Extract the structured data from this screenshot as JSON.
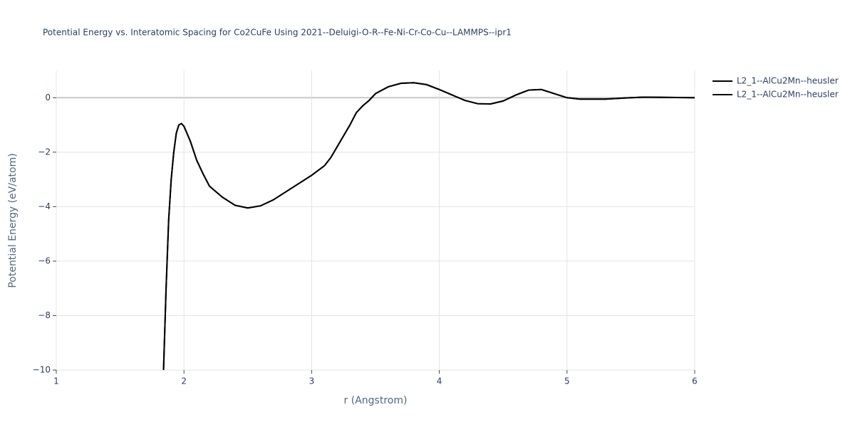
{
  "chart_data": {
    "type": "line",
    "title": "Potential Energy vs. Interatomic Spacing for Co2CuFe Using 2021--Deluigi-O-R--Fe-Ni-Cr-Co-Cu--LAMMPS--ipr1",
    "xlabel": "r (Angstrom)",
    "ylabel": "Potential Energy (eV/atom)",
    "x": [
      1.84,
      1.86,
      1.88,
      1.9,
      1.92,
      1.94,
      1.96,
      1.98,
      2.0,
      2.05,
      2.1,
      2.15,
      2.2,
      2.3,
      2.4,
      2.5,
      2.6,
      2.7,
      2.8,
      2.9,
      3.0,
      3.1,
      3.15,
      3.2,
      3.3,
      3.35,
      3.4,
      3.45,
      3.5,
      3.6,
      3.7,
      3.8,
      3.9,
      4.0,
      4.1,
      4.2,
      4.3,
      4.4,
      4.5,
      4.6,
      4.7,
      4.8,
      4.9,
      5.0,
      5.1,
      5.3,
      5.5,
      5.6,
      5.8,
      6.0
    ],
    "series": [
      {
        "name": "L2_1--AlCu2Mn--heusler",
        "color": "#000000",
        "values": [
          -10,
          -7,
          -4.5,
          -3,
          -2,
          -1.3,
          -1.0,
          -0.95,
          -1.05,
          -1.6,
          -2.3,
          -2.8,
          -3.25,
          -3.65,
          -3.95,
          -4.05,
          -3.97,
          -3.75,
          -3.45,
          -3.15,
          -2.85,
          -2.5,
          -2.2,
          -1.8,
          -1.0,
          -0.55,
          -0.3,
          -0.1,
          0.15,
          0.4,
          0.53,
          0.55,
          0.48,
          0.3,
          0.1,
          -0.1,
          -0.22,
          -0.23,
          -0.12,
          0.1,
          0.28,
          0.3,
          0.15,
          0,
          -0.05,
          -0.05,
          0,
          0.02,
          0.01,
          0
        ]
      },
      {
        "name": "L2_1--AlCu2Mn--heusler",
        "color": "#000000",
        "values": [
          -10,
          -7,
          -4.5,
          -3,
          -2,
          -1.3,
          -1.0,
          -0.95,
          -1.05,
          -1.6,
          -2.3,
          -2.8,
          -3.25,
          -3.65,
          -3.95,
          -4.05,
          -3.97,
          -3.75,
          -3.45,
          -3.15,
          -2.85,
          -2.5,
          -2.2,
          -1.8,
          -1.0,
          -0.55,
          -0.3,
          -0.1,
          0.15,
          0.4,
          0.53,
          0.55,
          0.48,
          0.3,
          0.1,
          -0.1,
          -0.22,
          -0.23,
          -0.12,
          0.1,
          0.28,
          0.3,
          0.15,
          0,
          -0.05,
          -0.05,
          0,
          0.02,
          0.01,
          0
        ]
      }
    ],
    "xlim": [
      1,
      6
    ],
    "xticks": [
      1,
      2,
      3,
      4,
      5,
      6
    ],
    "ylim": [
      -10,
      1
    ],
    "yticks": [
      {
        "value": -10,
        "label": "−10"
      },
      {
        "value": -8,
        "label": "−8"
      },
      {
        "value": -6,
        "label": "−6"
      },
      {
        "value": -4,
        "label": "−4"
      },
      {
        "value": -2,
        "label": "−2"
      },
      0
    ],
    "grid": true,
    "legend": "outside-right"
  }
}
